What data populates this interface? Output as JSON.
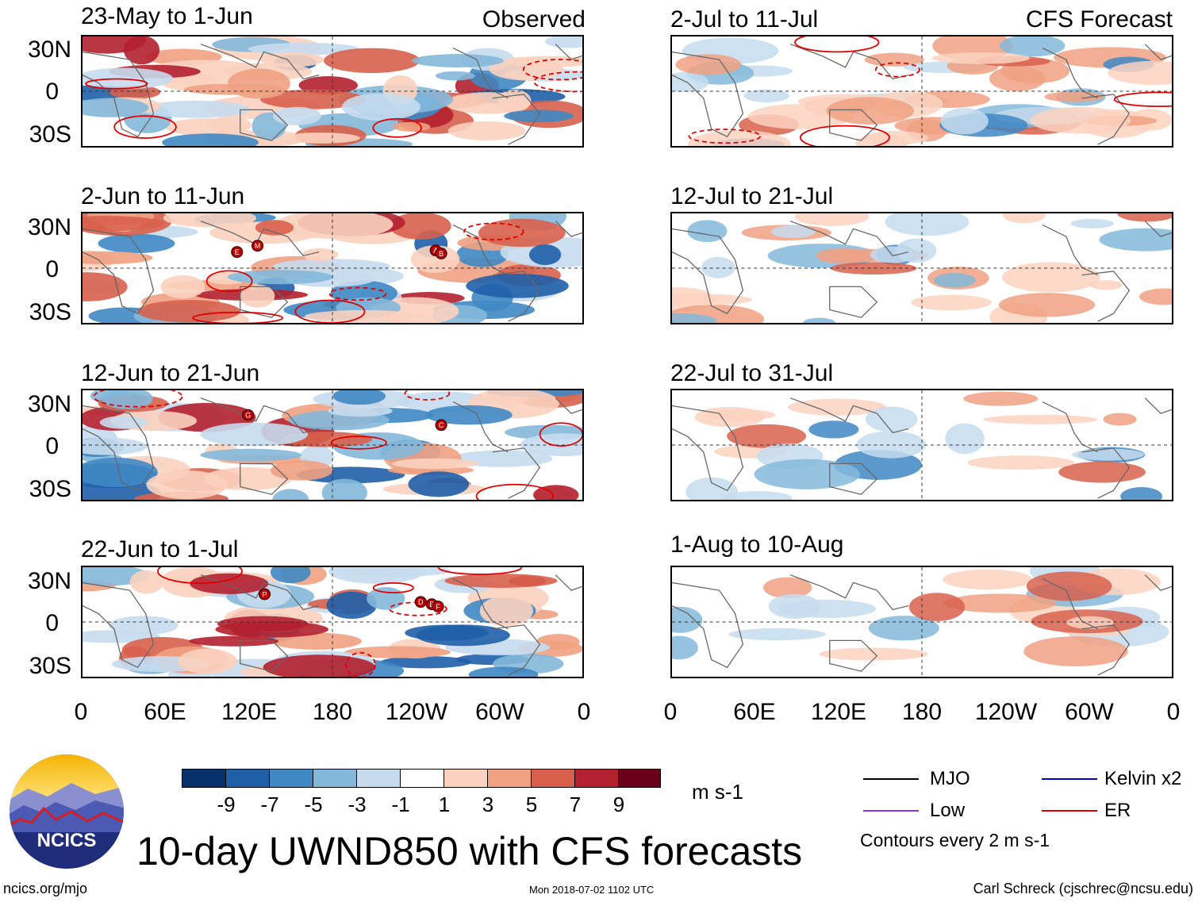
{
  "figure": {
    "main_title": "10-day UWND850 with CFS forecasts",
    "units": "m s-1",
    "left_footer": "ncics.org/mjo",
    "center_footer": "Mon 2018-07-02 1102 UTC",
    "right_footer": "Carl Schreck (cjschrec@ncsu.edu)",
    "logo_text": "NCICS",
    "contour_note": "Contours every 2 m s-1"
  },
  "columns": {
    "left_header": "Observed",
    "right_header": "CFS Forecast"
  },
  "chart_data": {
    "type": "heatmap",
    "variable": "850-hPa zonal wind anomaly (10-day mean)",
    "units": "m s-1",
    "x_ticks": [
      "0",
      "60E",
      "120E",
      "180",
      "120W",
      "60W",
      "0"
    ],
    "y_ticks": [
      "30N",
      "0",
      "30S"
    ],
    "color_levels": [
      "-9",
      "-7",
      "-5",
      "-3",
      "-1",
      "1",
      "3",
      "5",
      "7",
      "9"
    ],
    "color_scale": [
      "#08306b",
      "#1f5fa8",
      "#3f88c4",
      "#84b8da",
      "#c6dcee",
      "#ffffff",
      "#fbd2bf",
      "#f0a182",
      "#d8604c",
      "#b3202f",
      "#6b0019"
    ],
    "panels_observed": [
      {
        "period": "23-May to 1-Jun",
        "storms": []
      },
      {
        "period": "2-Jun to 11-Jun",
        "storms": [
          "E",
          "M",
          "A",
          "B"
        ]
      },
      {
        "period": "12-Jun to 21-Jun",
        "storms": [
          "G",
          "C"
        ]
      },
      {
        "period": "22-Jun to 1-Jul",
        "storms": [
          "P",
          "D",
          "E",
          "F"
        ]
      }
    ],
    "panels_forecast": [
      {
        "period": "2-Jul to 11-Jul"
      },
      {
        "period": "12-Jul to 21-Jul"
      },
      {
        "period": "22-Jul to 31-Jul"
      },
      {
        "period": "1-Aug to 10-Aug"
      }
    ],
    "legend": [
      {
        "label": "MJO",
        "color": "#000000"
      },
      {
        "label": "Kelvin x2",
        "color": "#0000cc"
      },
      {
        "label": "Low",
        "color": "#9933cc"
      },
      {
        "label": "ER",
        "color": "#e00000"
      }
    ]
  }
}
